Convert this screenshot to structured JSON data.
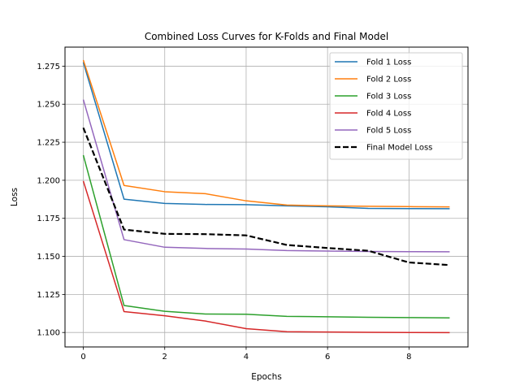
{
  "chart_data": {
    "type": "line",
    "title": "Combined Loss Curves for K-Folds and Final Model",
    "xlabel": "Epochs",
    "ylabel": "Loss",
    "x": [
      0,
      1,
      2,
      3,
      4,
      5,
      6,
      7,
      8,
      9
    ],
    "xlim": [
      -0.45,
      9.45
    ],
    "ylim": [
      1.0905,
      1.2875
    ],
    "xticks": [
      0,
      2,
      4,
      6,
      8
    ],
    "xtick_labels": [
      "0",
      "2",
      "4",
      "6",
      "8"
    ],
    "yticks": [
      1.1,
      1.125,
      1.15,
      1.175,
      1.2,
      1.225,
      1.25,
      1.275
    ],
    "ytick_labels": [
      "1.100",
      "1.125",
      "1.150",
      "1.175",
      "1.200",
      "1.225",
      "1.250",
      "1.275"
    ],
    "grid": true,
    "legend_position": "top-right",
    "series": [
      {
        "name": "Fold 1 Loss",
        "color": "#1f77b4",
        "dash": "solid",
        "values": [
          1.2775,
          1.1876,
          1.1848,
          1.1841,
          1.184,
          1.1832,
          1.1826,
          1.1815,
          1.1814,
          1.1813
        ]
      },
      {
        "name": "Fold 2 Loss",
        "color": "#ff7f0e",
        "dash": "solid",
        "values": [
          1.279,
          1.1966,
          1.1925,
          1.1912,
          1.1865,
          1.1837,
          1.1832,
          1.1829,
          1.1827,
          1.1825
        ]
      },
      {
        "name": "Fold 3 Loss",
        "color": "#2ca02c",
        "dash": "solid",
        "values": [
          1.2165,
          1.1177,
          1.1139,
          1.1121,
          1.112,
          1.1106,
          1.1103,
          1.11,
          1.1098,
          1.1096
        ]
      },
      {
        "name": "Fold 4 Loss",
        "color": "#d62728",
        "dash": "solid",
        "values": [
          1.1995,
          1.1137,
          1.111,
          1.1075,
          1.1025,
          1.1005,
          1.1003,
          1.1001,
          1.1,
          1.0999
        ]
      },
      {
        "name": "Fold 5 Loss",
        "color": "#9467bd",
        "dash": "solid",
        "values": [
          1.253,
          1.161,
          1.156,
          1.1552,
          1.1548,
          1.1538,
          1.1535,
          1.1532,
          1.1531,
          1.153
        ]
      },
      {
        "name": "Final Model Loss",
        "color": "#000000",
        "dash": "dashed",
        "values": [
          1.2345,
          1.1676,
          1.1648,
          1.1646,
          1.1638,
          1.1575,
          1.1555,
          1.1537,
          1.146,
          1.1443
        ]
      }
    ]
  }
}
